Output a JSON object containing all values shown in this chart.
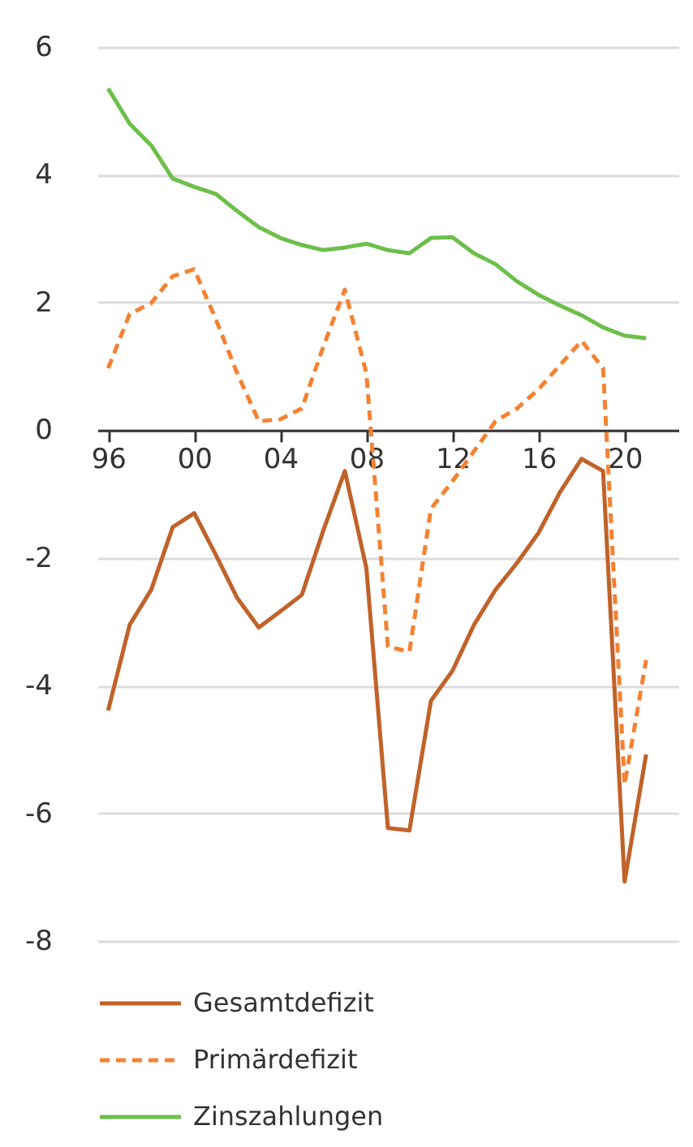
{
  "chart_data": {
    "type": "line",
    "x": [
      1996,
      1997,
      1998,
      1999,
      2000,
      2001,
      2002,
      2003,
      2004,
      2005,
      2006,
      2007,
      2008,
      2009,
      2010,
      2011,
      2012,
      2013,
      2014,
      2015,
      2016,
      2017,
      2018,
      2019,
      2020,
      2021
    ],
    "series": [
      {
        "name": "Gesamtdefizit",
        "color": "#c0622a",
        "line_style": "solid",
        "values": [
          -4.39,
          -3.05,
          -2.5,
          -1.52,
          -1.3,
          -1.95,
          -2.63,
          -3.09,
          -2.84,
          -2.58,
          -1.57,
          -0.64,
          -2.16,
          -6.23,
          -6.27,
          -4.24,
          -3.77,
          -3.05,
          -2.5,
          -2.08,
          -1.61,
          -0.97,
          -0.45,
          -0.64,
          -7.07,
          -5.08
        ]
      },
      {
        "name": "Primärdefizit",
        "color": "#f58232",
        "line_style": "dashed",
        "values": [
          0.97,
          1.82,
          1.99,
          2.41,
          2.52,
          1.74,
          0.89,
          0.14,
          0.17,
          0.34,
          1.31,
          2.2,
          0.89,
          -3.39,
          -3.47,
          -1.23,
          -0.8,
          -0.33,
          0.14,
          0.34,
          0.64,
          1.02,
          1.4,
          0.97,
          -5.55,
          -3.6
        ]
      },
      {
        "name": "Zinszahlungen",
        "color": "#6dbf4b",
        "line_style": "solid",
        "values": [
          5.35,
          4.8,
          4.46,
          3.94,
          3.81,
          3.7,
          3.43,
          3.18,
          3.01,
          2.9,
          2.82,
          2.86,
          2.92,
          2.82,
          2.77,
          3.01,
          3.02,
          2.77,
          2.6,
          2.33,
          2.12,
          1.95,
          1.8,
          1.61,
          1.48,
          1.44
        ]
      }
    ],
    "xlim": [
      1995.5,
      2022.5
    ],
    "xticks": [
      {
        "value": 1996,
        "label": "96"
      },
      {
        "value": 2000,
        "label": "00"
      },
      {
        "value": 2004,
        "label": "04"
      },
      {
        "value": 2008,
        "label": "08"
      },
      {
        "value": 2012,
        "label": "12"
      },
      {
        "value": 2016,
        "label": "16"
      },
      {
        "value": 2020,
        "label": "20"
      }
    ],
    "ylim": [
      -8,
      6
    ],
    "yticks": [
      -8,
      -6,
      -4,
      -2,
      0,
      2,
      4,
      6
    ],
    "grid": "y",
    "legend": "bottom"
  }
}
